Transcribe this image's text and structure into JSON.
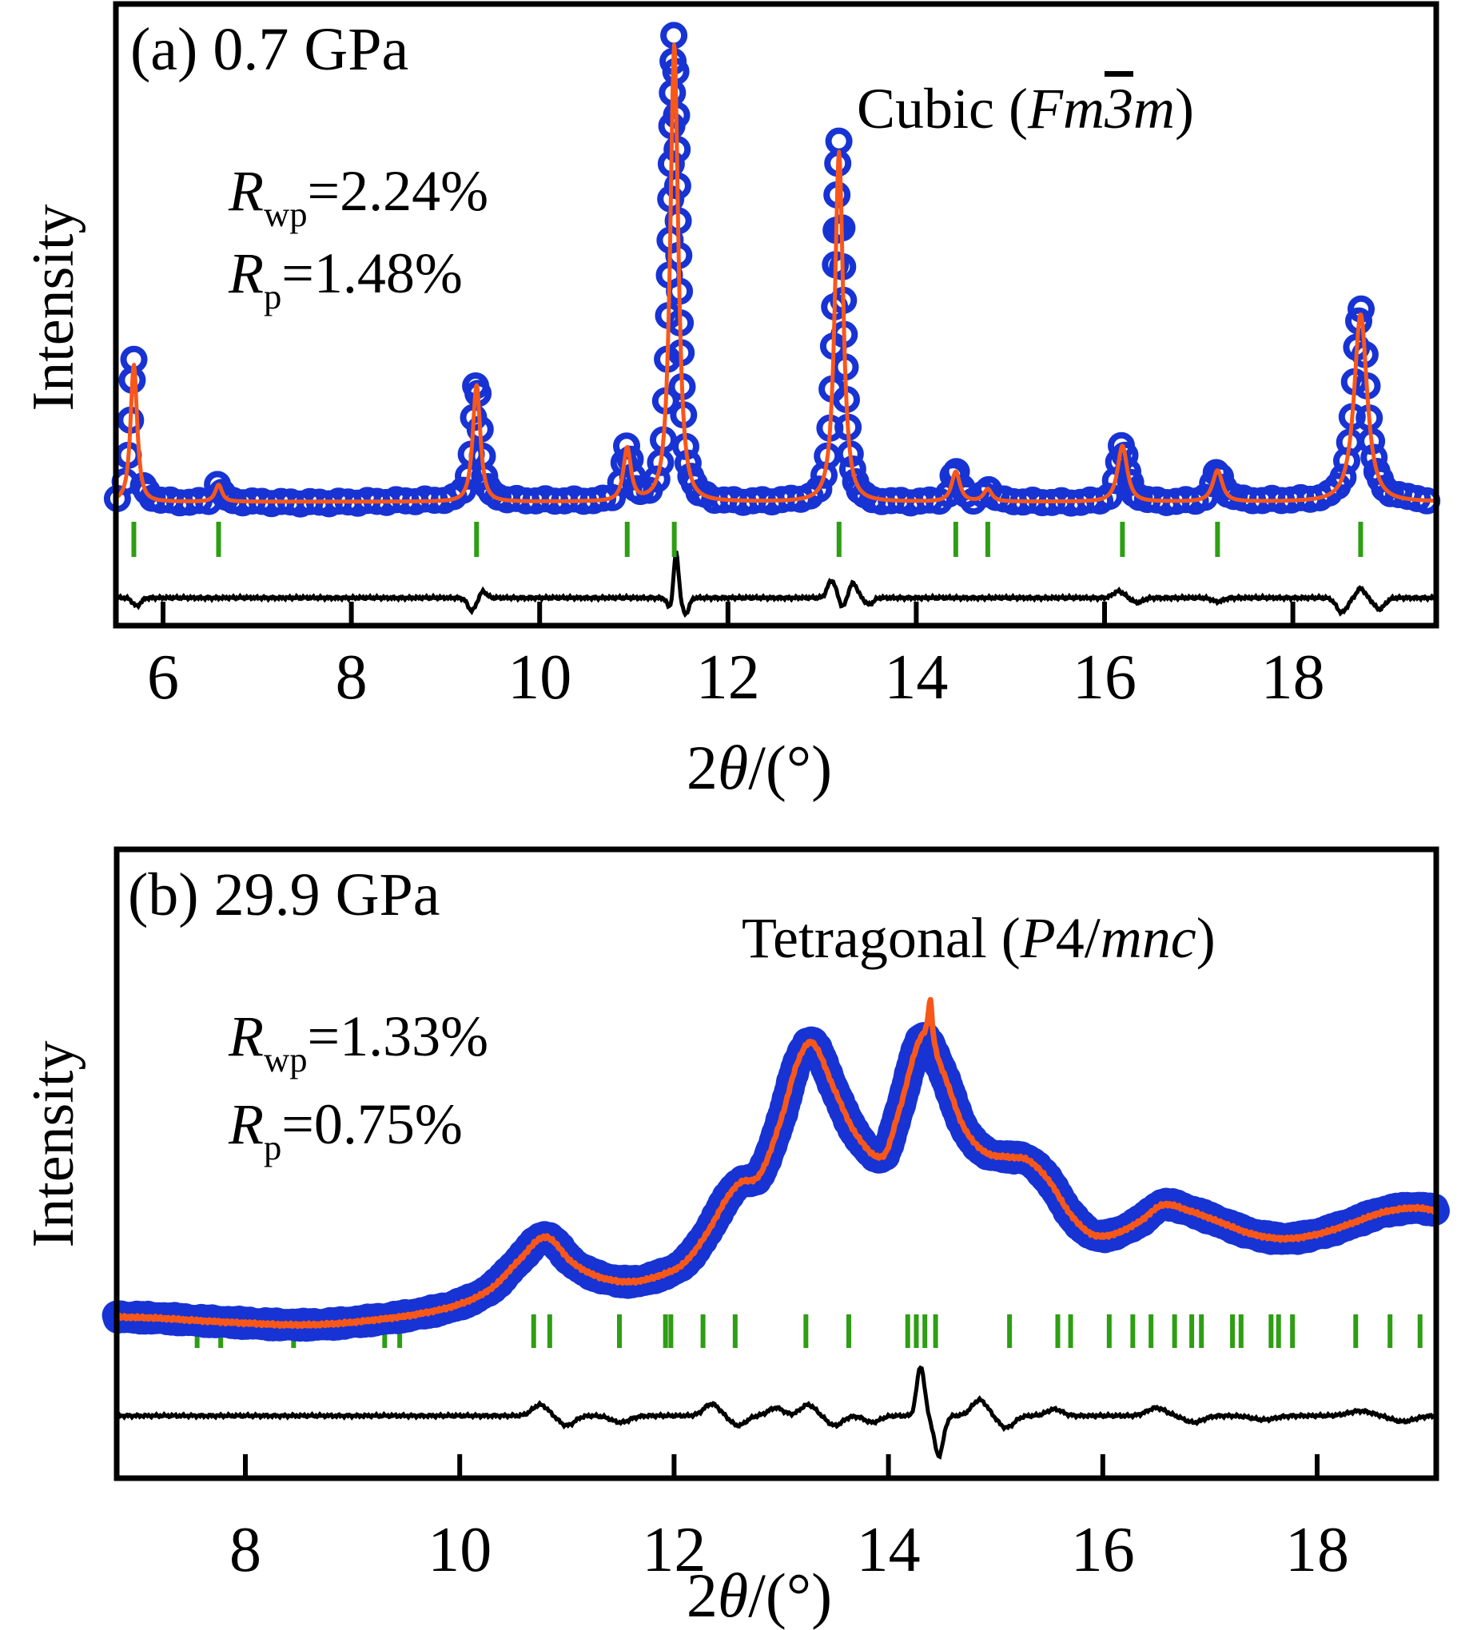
{
  "figure": {
    "panels": [
      {
        "id": "a",
        "label": "(a) 0.7 GPa",
        "phase_label": {
          "prefix": "Cubic (",
          "italic1": "Fm",
          "overbar": "3",
          "italic2": "m",
          "suffix": ")"
        },
        "r_wp": {
          "symbol": "R",
          "sub": "wp",
          "value": "=2.24%"
        },
        "r_p": {
          "symbol": "R",
          "sub": "p",
          "value": "=1.48%"
        },
        "ylabel": "Intensity",
        "xlabel": {
          "num": "2",
          "theta": "θ",
          "rest": "/(°)"
        }
      },
      {
        "id": "b",
        "label": "(b) 29.9 GPa",
        "phase_label": {
          "prefix": "Tetragonal (",
          "italic1": "P",
          "mid": "4/",
          "italic2": "mnc",
          "suffix": ")"
        },
        "r_wp": {
          "symbol": "R",
          "sub": "wp",
          "value": "=1.33%"
        },
        "r_p": {
          "symbol": "R",
          "sub": "p",
          "value": "=0.75%"
        },
        "ylabel": "Intensity",
        "xlabel": {
          "num": "2",
          "theta": "θ",
          "rest": "/(°)"
        }
      }
    ]
  },
  "colors": {
    "observed": "#1733d4",
    "calculated": "#f8571a",
    "bragg": "#2e9e14",
    "difference": "#000000",
    "frame": "#000000"
  },
  "chart_data": [
    {
      "type": "line",
      "title": "(a) 0.7 GPa",
      "phase": "Cubic (Fm-3m)",
      "pressure": "0.7 GPa",
      "r_wp_percent": 2.24,
      "r_p_percent": 1.48,
      "xlabel": "2theta (deg)",
      "ylabel": "Intensity (arb. units)",
      "xlim": [
        5.5,
        19.52
      ],
      "xticks": [
        6,
        8,
        10,
        12,
        14,
        16,
        18
      ],
      "legend": [
        "observed",
        "calculated",
        "Bragg positions",
        "difference"
      ],
      "baseline_level": 0.263,
      "peaks": [
        {
          "two_theta": 5.69,
          "amplitude": 0.3,
          "width": 0.048
        },
        {
          "two_theta": 6.59,
          "amplitude": 0.037,
          "width": 0.05
        },
        {
          "two_theta": 9.33,
          "amplitude": 0.255,
          "width": 0.055
        },
        {
          "two_theta": 10.93,
          "amplitude": 0.115,
          "width": 0.055
        },
        {
          "two_theta": 11.43,
          "amplitude": 1.0,
          "width": 0.058
        },
        {
          "two_theta": 13.18,
          "amplitude": 0.765,
          "width": 0.06
        },
        {
          "two_theta": 14.42,
          "amplitude": 0.065,
          "width": 0.06
        },
        {
          "two_theta": 14.76,
          "amplitude": 0.027,
          "width": 0.06
        },
        {
          "two_theta": 16.19,
          "amplitude": 0.122,
          "width": 0.07
        },
        {
          "two_theta": 17.2,
          "amplitude": 0.068,
          "width": 0.07
        },
        {
          "two_theta": 18.72,
          "amplitude": 0.41,
          "width": 0.095
        }
      ],
      "bragg_ticks": [
        5.69,
        6.59,
        9.33,
        10.93,
        11.43,
        13.18,
        14.42,
        14.76,
        16.19,
        17.2,
        18.72
      ],
      "difference": {
        "level": 0.059,
        "wiggles": [
          [
            5.72,
            -0.017,
            0.06
          ],
          [
            9.28,
            -0.027,
            0.06
          ],
          [
            9.4,
            0.014,
            0.05
          ],
          [
            11.38,
            -0.02,
            0.04
          ],
          [
            11.45,
            0.098,
            0.035
          ],
          [
            11.55,
            -0.034,
            0.05
          ],
          [
            13.1,
            0.037,
            0.06
          ],
          [
            13.22,
            -0.02,
            0.045
          ],
          [
            13.33,
            0.031,
            0.06
          ],
          [
            13.5,
            -0.014,
            0.06
          ],
          [
            16.15,
            0.014,
            0.08
          ],
          [
            16.35,
            -0.01,
            0.08
          ],
          [
            17.2,
            -0.008,
            0.08
          ],
          [
            18.52,
            -0.031,
            0.08
          ],
          [
            18.72,
            0.02,
            0.06
          ],
          [
            18.92,
            -0.024,
            0.08
          ]
        ]
      }
    },
    {
      "type": "line",
      "title": "(b) 29.9 GPa",
      "phase": "Tetragonal (P4/mnc)",
      "pressure": "29.9 GPa",
      "r_wp_percent": 1.33,
      "r_p_percent": 0.75,
      "xlabel": "2theta (deg)",
      "ylabel": "Intensity (arb. units)",
      "xlim": [
        6.8,
        19.11
      ],
      "xticks": [
        8,
        10,
        12,
        14,
        16,
        18
      ],
      "legend": [
        "observed",
        "calculated",
        "Bragg positions",
        "difference"
      ],
      "profile": [
        [
          6.8,
          0.367
        ],
        [
          7.2,
          0.364
        ],
        [
          7.6,
          0.358
        ],
        [
          8.0,
          0.353
        ],
        [
          8.4,
          0.349
        ],
        [
          8.8,
          0.351
        ],
        [
          9.2,
          0.36
        ],
        [
          9.6,
          0.373
        ],
        [
          10.0,
          0.396
        ],
        [
          10.3,
          0.433
        ],
        [
          10.55,
          0.495
        ],
        [
          10.8,
          0.549
        ],
        [
          11.05,
          0.491
        ],
        [
          11.3,
          0.458
        ],
        [
          11.6,
          0.447
        ],
        [
          11.9,
          0.464
        ],
        [
          12.1,
          0.491
        ],
        [
          12.3,
          0.555
        ],
        [
          12.5,
          0.64
        ],
        [
          12.62,
          0.673
        ],
        [
          12.8,
          0.691
        ],
        [
          13.0,
          0.818
        ],
        [
          13.15,
          0.945
        ],
        [
          13.29,
          0.991
        ],
        [
          13.5,
          0.882
        ],
        [
          13.7,
          0.782
        ],
        [
          13.95,
          0.733
        ],
        [
          14.1,
          0.836
        ],
        [
          14.31,
          1.0
        ],
        [
          14.5,
          0.927
        ],
        [
          14.7,
          0.8
        ],
        [
          14.9,
          0.742
        ],
        [
          15.1,
          0.731
        ],
        [
          15.3,
          0.724
        ],
        [
          15.5,
          0.676
        ],
        [
          15.7,
          0.6
        ],
        [
          15.9,
          0.555
        ],
        [
          16.1,
          0.555
        ],
        [
          16.35,
          0.585
        ],
        [
          16.56,
          0.622
        ],
        [
          16.8,
          0.609
        ],
        [
          17.1,
          0.582
        ],
        [
          17.4,
          0.555
        ],
        [
          17.7,
          0.545
        ],
        [
          18.0,
          0.555
        ],
        [
          18.3,
          0.578
        ],
        [
          18.6,
          0.604
        ],
        [
          18.9,
          0.615
        ],
        [
          19.11,
          0.609
        ]
      ],
      "calc_extra_peak": {
        "two_theta": 14.39,
        "amplitude": 0.1,
        "width": 0.022
      },
      "bragg_ticks": [
        7.55,
        7.77,
        8.45,
        9.3,
        9.44,
        10.69,
        10.84,
        11.49,
        11.92,
        11.97,
        12.27,
        12.57,
        13.23,
        13.63,
        14.18,
        14.26,
        14.34,
        14.44,
        15.13,
        15.58,
        15.7,
        16.06,
        16.28,
        16.45,
        16.67,
        16.83,
        16.92,
        17.21,
        17.29,
        17.57,
        17.64,
        17.77,
        18.36,
        18.68,
        18.96
      ],
      "difference": {
        "level": 0.142,
        "wiggles": [
          [
            10.75,
            0.025,
            0.1
          ],
          [
            11.0,
            -0.022,
            0.1
          ],
          [
            11.5,
            -0.015,
            0.12
          ],
          [
            12.35,
            0.027,
            0.1
          ],
          [
            12.6,
            -0.022,
            0.1
          ],
          [
            12.95,
            0.018,
            0.1
          ],
          [
            13.25,
            0.025,
            0.1
          ],
          [
            13.5,
            -0.022,
            0.1
          ],
          [
            13.85,
            -0.015,
            0.1
          ],
          [
            14.3,
            0.113,
            0.05
          ],
          [
            14.47,
            -0.091,
            0.06
          ],
          [
            14.85,
            0.036,
            0.1
          ],
          [
            15.1,
            -0.027,
            0.1
          ],
          [
            15.55,
            0.015,
            0.1
          ],
          [
            16.5,
            0.018,
            0.12
          ],
          [
            16.85,
            -0.015,
            0.12
          ],
          [
            17.5,
            -0.009,
            0.15
          ],
          [
            18.4,
            0.011,
            0.15
          ],
          [
            18.8,
            -0.013,
            0.15
          ]
        ]
      }
    }
  ]
}
